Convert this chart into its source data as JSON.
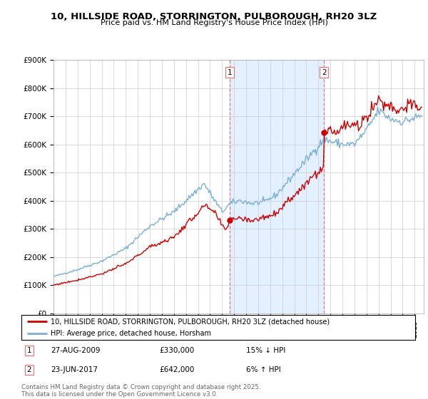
{
  "title": "10, HILLSIDE ROAD, STORRINGTON, PULBOROUGH, RH20 3LZ",
  "subtitle": "Price paid vs. HM Land Registry's House Price Index (HPI)",
  "ylim": [
    0,
    900000
  ],
  "yticks": [
    0,
    100000,
    200000,
    300000,
    400000,
    500000,
    600000,
    700000,
    800000,
    900000
  ],
  "ytick_labels": [
    "£0",
    "£100K",
    "£200K",
    "£300K",
    "£400K",
    "£500K",
    "£600K",
    "£700K",
    "£800K",
    "£900K"
  ],
  "sale1_date": "2009-08-27",
  "sale1_price": 330000,
  "sale2_date": "2017-06-23",
  "sale2_price": 642000,
  "line_color_sales": "#cc0000",
  "line_color_hpi": "#7ab0d4",
  "shade_color": "#ddeeff",
  "vline_color": "#e87878",
  "legend_line1": "10, HILLSIDE ROAD, STORRINGTON, PULBOROUGH, RH20 3LZ (detached house)",
  "legend_line2": "HPI: Average price, detached house, Horsham",
  "footer": "Contains HM Land Registry data © Crown copyright and database right 2025.\nThis data is licensed under the Open Government Licence v3.0.",
  "background_color": "#ffffff",
  "grid_color": "#cccccc",
  "hpi_anchors": {
    "1995.0": 130000,
    "1997.0": 155000,
    "1999.0": 185000,
    "2001.0": 230000,
    "2003.0": 310000,
    "2005.0": 360000,
    "2007.5": 460000,
    "2009.0": 360000,
    "2009.7": 390000,
    "2010.5": 400000,
    "2011.5": 390000,
    "2012.5": 395000,
    "2013.5": 420000,
    "2014.5": 470000,
    "2015.5": 520000,
    "2016.5": 570000,
    "2017.5": 620000,
    "2018.0": 610000,
    "2019.0": 600000,
    "2020.0": 600000,
    "2021.0": 650000,
    "2022.0": 720000,
    "2023.0": 690000,
    "2024.0": 680000,
    "2025.5": 700000
  },
  "prop_anchors_pre": {
    "1995.0": 100000,
    "1997.0": 118000,
    "1999.0": 140000,
    "2001.0": 175000,
    "2003.0": 235000,
    "2005.0": 270000,
    "2007.5": 380000,
    "2008.0": 370000,
    "2008.5": 350000,
    "2009.0": 310000,
    "2009.3": 295000,
    "2009.65": 330000
  },
  "prop_anchors_post2": {
    "2017.47": 642000,
    "2018.0": 660000,
    "2018.5": 640000,
    "2019.0": 660000,
    "2019.5": 670000,
    "2020.0": 660000,
    "2020.5": 670000,
    "2021.0": 700000,
    "2021.5": 730000,
    "2022.0": 760000,
    "2022.5": 740000,
    "2023.0": 740000,
    "2023.5": 720000,
    "2024.0": 730000,
    "2024.5": 740000,
    "2025.5": 730000
  }
}
